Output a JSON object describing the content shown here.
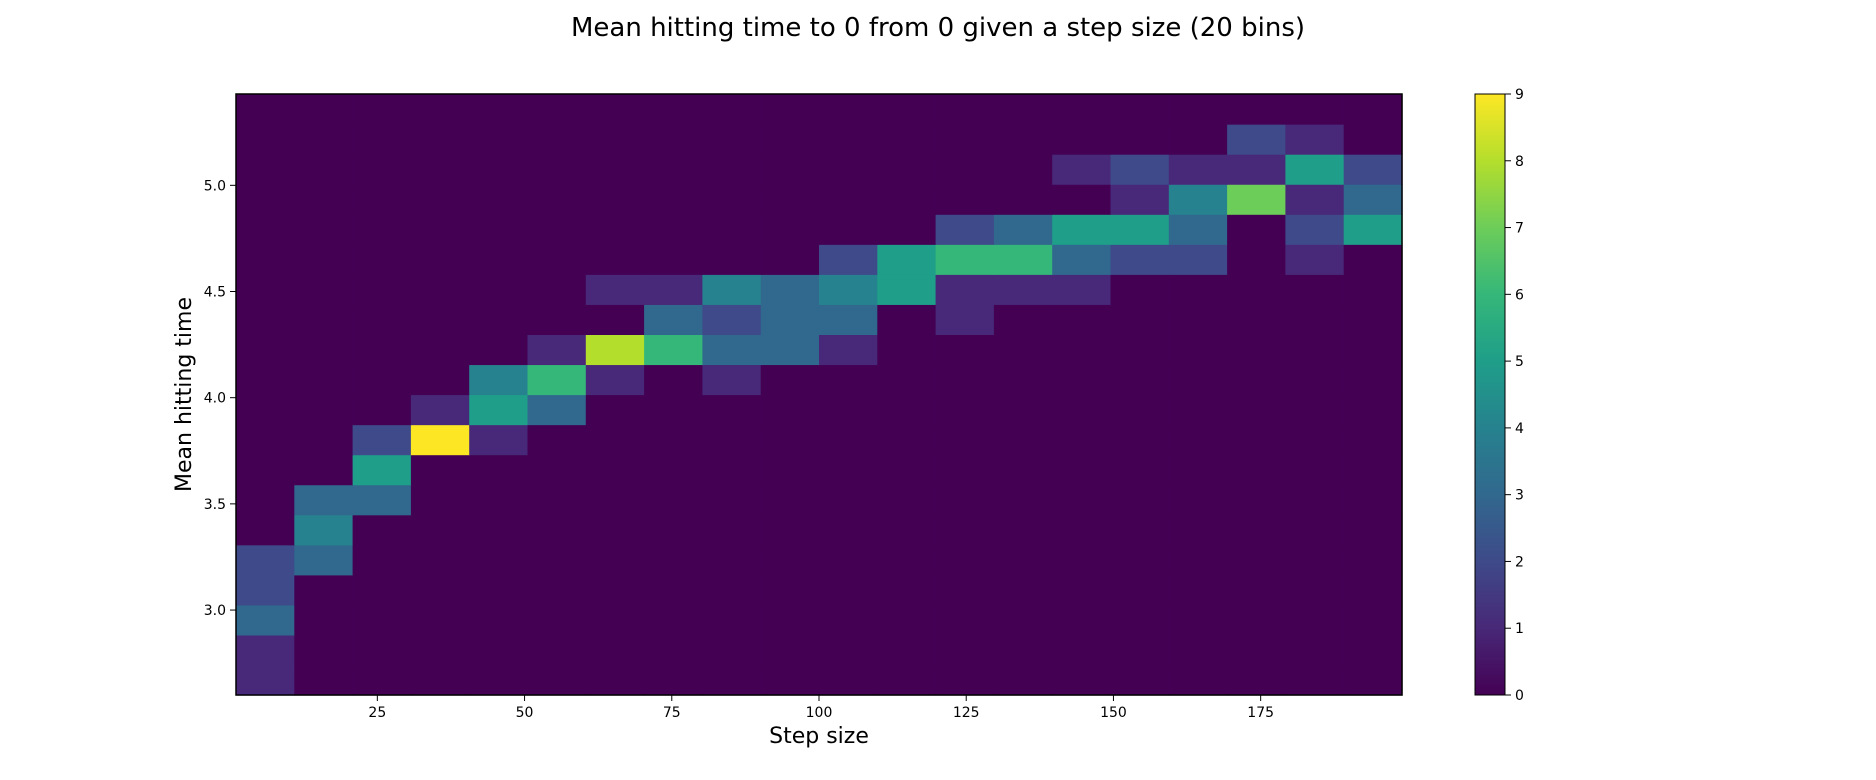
{
  "chart_data": {
    "type": "heatmap",
    "title": "Mean hitting time to 0 from 0 given a step size (20 bins)",
    "xlabel": "Step size",
    "ylabel": "Mean hitting time",
    "xlim": [
      1,
      199
    ],
    "ylim": [
      2.6,
      5.43
    ],
    "x_bin_edges": [
      1,
      10.9,
      20.8,
      30.7,
      40.6,
      50.5,
      60.4,
      70.3,
      80.2,
      90.1,
      100,
      109.9,
      119.8,
      129.7,
      139.6,
      149.5,
      159.4,
      169.3,
      179.2,
      189.1,
      199
    ],
    "y_bin_edges": [
      2.6,
      2.7415,
      2.883,
      3.0245,
      3.166,
      3.3075,
      3.449,
      3.5905,
      3.732,
      3.8735,
      4.015,
      4.1565,
      4.298,
      4.4395,
      4.581,
      4.7225,
      4.864,
      5.0055,
      5.147,
      5.2885,
      5.43
    ],
    "x_ticks": [
      25,
      50,
      75,
      100,
      125,
      150,
      175
    ],
    "x_tick_labels": [
      "25",
      "50",
      "75",
      "100",
      "125",
      "150",
      "175"
    ],
    "y_ticks": [
      3.0,
      3.5,
      4.0,
      4.5,
      5.0
    ],
    "y_tick_labels": [
      "3.0",
      "3.5",
      "4.0",
      "4.5",
      "5.0"
    ],
    "counts_note_order": "rows from lowest y bin to highest; columns from lowest x bin to highest",
    "counts": [
      [
        1,
        0,
        0,
        0,
        0,
        0,
        0,
        0,
        0,
        0,
        0,
        0,
        0,
        0,
        0,
        0,
        0,
        0,
        0,
        0
      ],
      [
        1,
        0,
        0,
        0,
        0,
        0,
        0,
        0,
        0,
        0,
        0,
        0,
        0,
        0,
        0,
        0,
        0,
        0,
        0,
        0
      ],
      [
        3,
        0,
        0,
        0,
        0,
        0,
        0,
        0,
        0,
        0,
        0,
        0,
        0,
        0,
        0,
        0,
        0,
        0,
        0,
        0
      ],
      [
        2,
        0,
        0,
        0,
        0,
        0,
        0,
        0,
        0,
        0,
        0,
        0,
        0,
        0,
        0,
        0,
        0,
        0,
        0,
        0
      ],
      [
        2,
        3,
        0,
        0,
        0,
        0,
        0,
        0,
        0,
        0,
        0,
        0,
        0,
        0,
        0,
        0,
        0,
        0,
        0,
        0
      ],
      [
        0,
        4,
        0,
        0,
        0,
        0,
        0,
        0,
        0,
        0,
        0,
        0,
        0,
        0,
        0,
        0,
        0,
        0,
        0,
        0
      ],
      [
        0,
        3,
        3,
        0,
        0,
        0,
        0,
        0,
        0,
        0,
        0,
        0,
        0,
        0,
        0,
        0,
        0,
        0,
        0,
        0
      ],
      [
        0,
        0,
        5,
        0,
        0,
        0,
        0,
        0,
        0,
        0,
        0,
        0,
        0,
        0,
        0,
        0,
        0,
        0,
        0,
        0
      ],
      [
        0,
        0,
        2,
        9,
        1,
        0,
        0,
        0,
        0,
        0,
        0,
        0,
        0,
        0,
        0,
        0,
        0,
        0,
        0,
        0
      ],
      [
        0,
        0,
        0,
        1,
        5,
        3,
        0,
        0,
        0,
        0,
        0,
        0,
        0,
        0,
        0,
        0,
        0,
        0,
        0,
        0
      ],
      [
        0,
        0,
        0,
        0,
        4,
        6,
        1,
        0,
        1,
        0,
        0,
        0,
        0,
        0,
        0,
        0,
        0,
        0,
        0,
        0
      ],
      [
        0,
        0,
        0,
        0,
        0,
        1,
        8,
        6,
        3,
        3,
        1,
        0,
        0,
        0,
        0,
        0,
        0,
        0,
        0,
        0
      ],
      [
        0,
        0,
        0,
        0,
        0,
        0,
        0,
        3,
        2,
        3,
        3,
        0,
        1,
        0,
        0,
        0,
        0,
        0,
        0,
        0
      ],
      [
        0,
        0,
        0,
        0,
        0,
        0,
        1,
        1,
        4,
        3,
        4,
        5,
        1,
        1,
        1,
        0,
        0,
        0,
        0,
        0
      ],
      [
        0,
        0,
        0,
        0,
        0,
        0,
        0,
        0,
        0,
        0,
        2,
        5,
        6,
        6,
        3,
        2,
        2,
        0,
        1,
        0
      ],
      [
        0,
        0,
        0,
        0,
        0,
        0,
        0,
        0,
        0,
        0,
        0,
        0,
        2,
        3,
        5,
        5,
        3,
        0,
        2,
        5
      ],
      [
        0,
        0,
        0,
        0,
        0,
        0,
        0,
        0,
        0,
        0,
        0,
        0,
        0,
        0,
        0,
        1,
        4,
        7,
        1,
        3
      ],
      [
        0,
        0,
        0,
        0,
        0,
        0,
        0,
        0,
        0,
        0,
        0,
        0,
        0,
        0,
        1,
        2,
        1,
        1,
        5,
        2
      ],
      [
        0,
        0,
        0,
        0,
        0,
        0,
        0,
        0,
        0,
        0,
        0,
        0,
        0,
        0,
        0,
        0,
        0,
        2,
        1,
        0
      ],
      [
        0,
        0,
        0,
        0,
        0,
        0,
        0,
        0,
        0,
        0,
        0,
        0,
        0,
        0,
        0,
        0,
        0,
        0,
        0,
        0
      ]
    ],
    "colorbar": {
      "min": 0,
      "max": 9,
      "ticks": [
        0,
        1,
        2,
        3,
        4,
        5,
        6,
        7,
        8,
        9
      ],
      "tick_labels": [
        "0",
        "1",
        "2",
        "3",
        "4",
        "5",
        "6",
        "7",
        "8",
        "9"
      ],
      "colormap": "viridis"
    },
    "grid": false
  }
}
